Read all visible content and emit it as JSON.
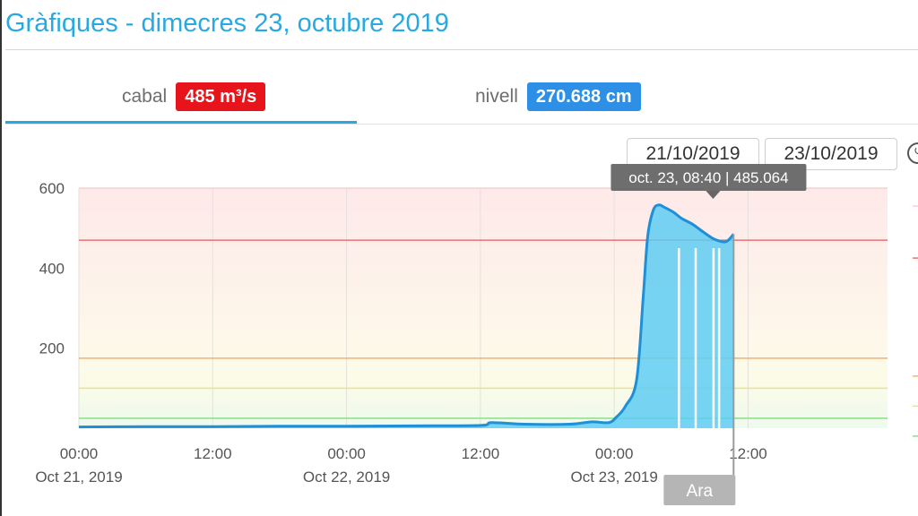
{
  "page": {
    "title": "Gràfiques - dimecres 23, octubre 2019"
  },
  "tabs": [
    {
      "label": "cabal",
      "value": "485 m³/s",
      "color": "#e8141c"
    },
    {
      "label": "nivell",
      "value": "270.688 cm",
      "color": "#2e8fe6"
    }
  ],
  "date_range": {
    "from": "21/10/2019",
    "to": "23/10/2019"
  },
  "chart_data": {
    "type": "area",
    "ylim": [
      0,
      600
    ],
    "y_ticks": [
      200,
      400,
      600
    ],
    "x_ticks": [
      {
        "t": 0,
        "label": "00:00",
        "sub": "Oct 21, 2019"
      },
      {
        "t": 12,
        "label": "12:00",
        "sub": ""
      },
      {
        "t": 24,
        "label": "00:00",
        "sub": "Oct 22, 2019"
      },
      {
        "t": 36,
        "label": "12:00",
        "sub": ""
      },
      {
        "t": 48,
        "label": "00:00",
        "sub": "Oct 23, 2019"
      },
      {
        "t": 60,
        "label": "12:00",
        "sub": ""
      }
    ],
    "xlim": [
      0,
      72.5
    ],
    "series": [
      {
        "x": [
          0,
          6,
          12,
          18,
          24,
          30,
          36,
          37,
          40,
          44,
          46,
          47.5,
          48.2,
          49,
          50,
          50.6,
          51,
          51.5,
          52,
          52.5,
          53.3,
          54,
          55,
          56,
          57,
          58,
          58.7
        ],
        "values": [
          3,
          4,
          4,
          5,
          5,
          6,
          7,
          14,
          10,
          10,
          16,
          14,
          28,
          55,
          120,
          330,
          480,
          545,
          558,
          552,
          540,
          525,
          510,
          490,
          472,
          466,
          485
        ]
      }
    ],
    "threshold_bands": [
      {
        "value": 600,
        "color": "#f8d0cf"
      },
      {
        "value": 470,
        "color": "#e87272"
      },
      {
        "value": 175,
        "color": "#f3b26e"
      },
      {
        "value": 100,
        "color": "#e9e38c"
      },
      {
        "value": 25,
        "color": "#8fdc8a"
      }
    ],
    "vertical_markers_t": [
      53.8,
      55.3,
      56.9,
      57.4
    ],
    "tooltip": {
      "text": "oct. 23, 08:40 | 485.064",
      "t": 56.7
    },
    "now_marker": {
      "label": "Ara",
      "t": 58.7
    }
  }
}
